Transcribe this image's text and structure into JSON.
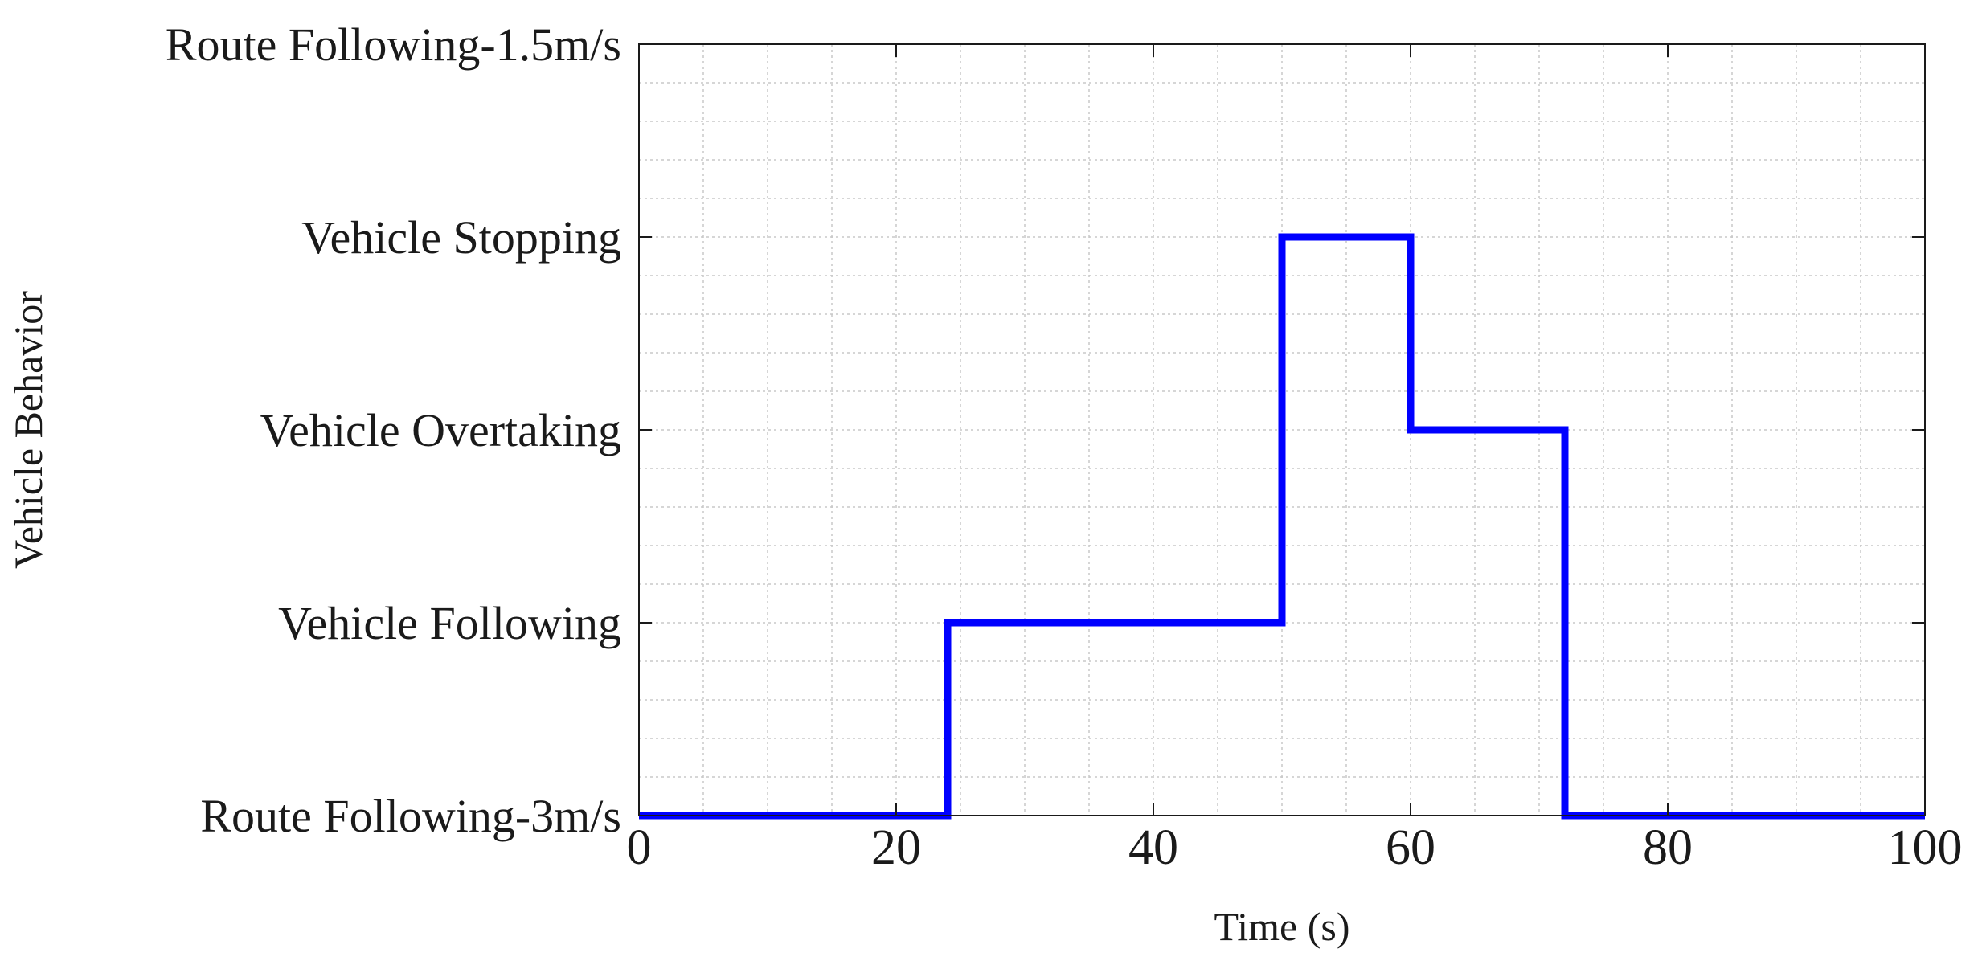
{
  "chart_data": {
    "type": "line",
    "step": true,
    "xlabel": "Time (s)",
    "ylabel": "Vehicle Behavior",
    "xlim": [
      0,
      100
    ],
    "ylim": [
      0,
      4
    ],
    "xticks": [
      0,
      20,
      40,
      60,
      80,
      100
    ],
    "xtick_labels": [
      "0",
      "20",
      "40",
      "60",
      "80",
      "100"
    ],
    "yticks": [
      0,
      1,
      2,
      3,
      4
    ],
    "ytick_labels": [
      "Route Following-3m/s",
      "Vehicle Following",
      "Vehicle Overtaking",
      "Vehicle Stopping",
      "Route Following-1.5m/s"
    ],
    "grid": true,
    "minor_grid": true,
    "series": [
      {
        "color": "#0000ff",
        "x": [
          0,
          24,
          24,
          50,
          50,
          60,
          60,
          72,
          72,
          100
        ],
        "y": [
          0,
          0,
          1,
          1,
          3,
          3,
          2,
          2,
          0,
          0
        ]
      }
    ]
  }
}
